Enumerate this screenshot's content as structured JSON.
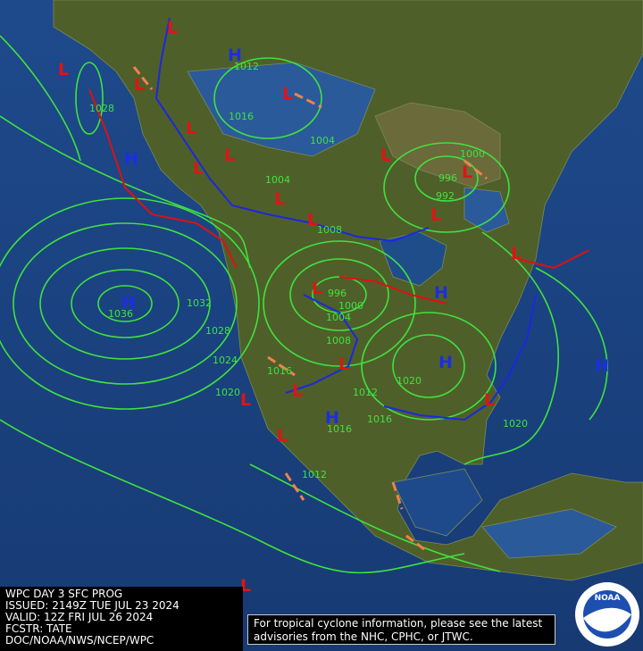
{
  "info_box": {
    "lines": [
      "WPC DAY 3 SFC PROG",
      "ISSUED: 2149Z TUE JUL 23 2024",
      "VALID: 12Z FRI JUL 26 2024",
      "FCSTR: TATE",
      "DOC/NOAA/NWS/NCEP/WPC"
    ]
  },
  "advisory": {
    "lines": [
      "For tropical cyclone information, please see the latest",
      "advisories from the NHC, CPHC, or JTWC."
    ]
  },
  "logo": {
    "text": "NOAA"
  },
  "highs": [
    "H",
    "H",
    "H",
    "H",
    "H",
    "H",
    "H"
  ],
  "lows": [
    "L",
    "L",
    "L",
    "L",
    "L",
    "L",
    "L",
    "L",
    "L",
    "L",
    "L",
    "L",
    "L",
    "L",
    "L",
    "L",
    "L",
    "L",
    "L",
    "L"
  ],
  "isobar_labels": [
    1036,
    1032,
    1028,
    1024,
    1020,
    1016,
    1004,
    1004,
    1008,
    1000,
    996,
    992,
    996,
    1000,
    1004,
    1008,
    1016,
    1012,
    1020,
    1016,
    1016,
    1012,
    1020,
    1028,
    1012
  ]
}
